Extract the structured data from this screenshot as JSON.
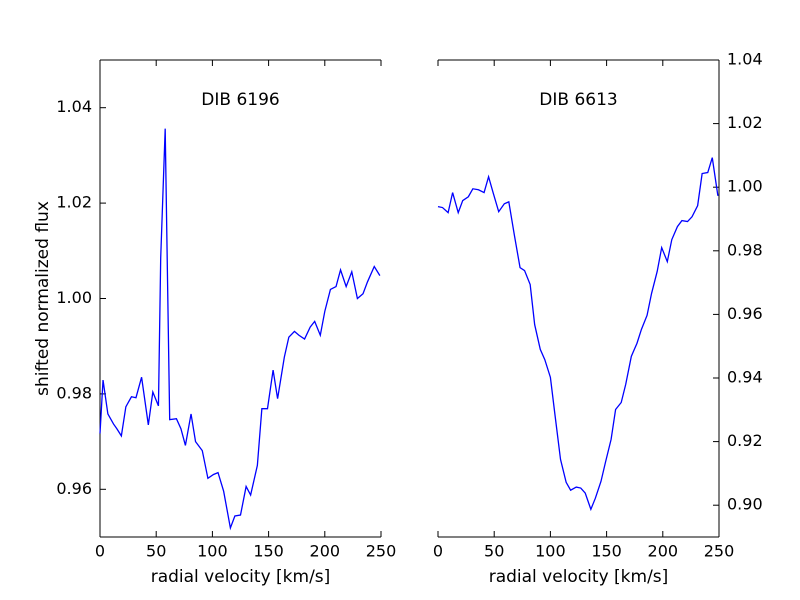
{
  "chart_data": [
    {
      "type": "line",
      "title": "DIB 6196",
      "xlabel": "radial velocity [km/s]",
      "ylabel": "shifted normalized flux",
      "y_axis_side": "left",
      "x": [
        0,
        2.7,
        7,
        12,
        15,
        19,
        23,
        28,
        32,
        37,
        43,
        47,
        52,
        54,
        58,
        62,
        68,
        72,
        76,
        81,
        85,
        91,
        96,
        101,
        105,
        110,
        116,
        120,
        125,
        130,
        134,
        140,
        144,
        149,
        154,
        158,
        164,
        168,
        173,
        177,
        182,
        187,
        191,
        196,
        200,
        205,
        210,
        214,
        219,
        224,
        229,
        234,
        238,
        244,
        249
      ],
      "series": [
        {
          "color": "#0000ff",
          "values": [
            0.9717,
            0.9829,
            0.9758,
            0.9737,
            0.9727,
            0.9712,
            0.9773,
            0.9794,
            0.9792,
            0.9835,
            0.9735,
            0.9804,
            0.9775,
            1.0085,
            1.0356,
            0.9746,
            0.9748,
            0.9727,
            0.9692,
            0.9758,
            0.97,
            0.9681,
            0.9623,
            0.9631,
            0.9635,
            0.9596,
            0.9519,
            0.9544,
            0.9546,
            0.9606,
            0.9588,
            0.965,
            0.9769,
            0.9769,
            0.985,
            0.979,
            0.9877,
            0.9919,
            0.9931,
            0.9923,
            0.9915,
            0.994,
            0.9952,
            0.9923,
            0.9973,
            1.0019,
            1.0025,
            1.006,
            1.0025,
            1.0056,
            1.0,
            1.001,
            1.0035,
            1.0067,
            1.0048
          ]
        }
      ],
      "xlim": [
        0,
        250
      ],
      "xticks": [
        0,
        50,
        100,
        150,
        200,
        250
      ],
      "ylim": [
        0.95,
        1.05
      ],
      "yticks": [
        0.96,
        0.98,
        {
          "value": 1.0,
          "label": "1.00"
        },
        1.02,
        1.04
      ]
    },
    {
      "type": "line",
      "title": "DIB 6613",
      "xlabel": "radial velocity [km/s]",
      "y_axis_side": "right",
      "x": [
        0,
        4,
        9,
        13,
        18,
        22,
        27,
        31,
        36,
        41,
        45,
        49,
        54,
        59,
        63,
        68,
        73,
        77,
        82,
        86,
        91,
        95,
        100,
        104,
        109,
        114,
        118,
        123,
        127,
        131,
        136,
        140,
        145,
        149,
        154,
        158,
        163,
        167,
        172,
        177,
        181,
        186,
        190,
        195,
        199,
        204,
        208,
        213,
        217,
        222,
        226,
        231,
        235,
        240,
        244,
        249
      ],
      "series": [
        {
          "color": "#0000ff",
          "values": [
            0.9939,
            0.9936,
            0.992,
            0.9983,
            0.992,
            0.9958,
            0.997,
            0.9995,
            0.9992,
            0.9983,
            1.0033,
            0.9983,
            0.9923,
            0.9948,
            0.9954,
            0.9848,
            0.9747,
            0.9738,
            0.9694,
            0.9568,
            0.949,
            0.9458,
            0.9402,
            0.9286,
            0.9144,
            0.9072,
            0.9047,
            0.9057,
            0.9054,
            0.9038,
            0.8987,
            0.9022,
            0.9075,
            0.9135,
            0.9207,
            0.9301,
            0.9323,
            0.938,
            0.9468,
            0.9509,
            0.9553,
            0.9597,
            0.9666,
            0.9735,
            0.981,
            0.9766,
            0.9835,
            0.9876,
            0.9895,
            0.9892,
            0.9907,
            0.9942,
            1.0043,
            1.0046,
            1.0093,
            0.9973
          ]
        }
      ],
      "xlim": [
        0,
        250
      ],
      "xticks": [
        0,
        50,
        100,
        150,
        200,
        250
      ],
      "ylim": [
        0.89,
        1.04
      ],
      "yticks": [
        {
          "value": 0.9,
          "label": "0.90"
        },
        0.92,
        0.94,
        0.96,
        0.98,
        {
          "value": 1.0,
          "label": "1.00"
        },
        1.02,
        1.04
      ]
    }
  ]
}
